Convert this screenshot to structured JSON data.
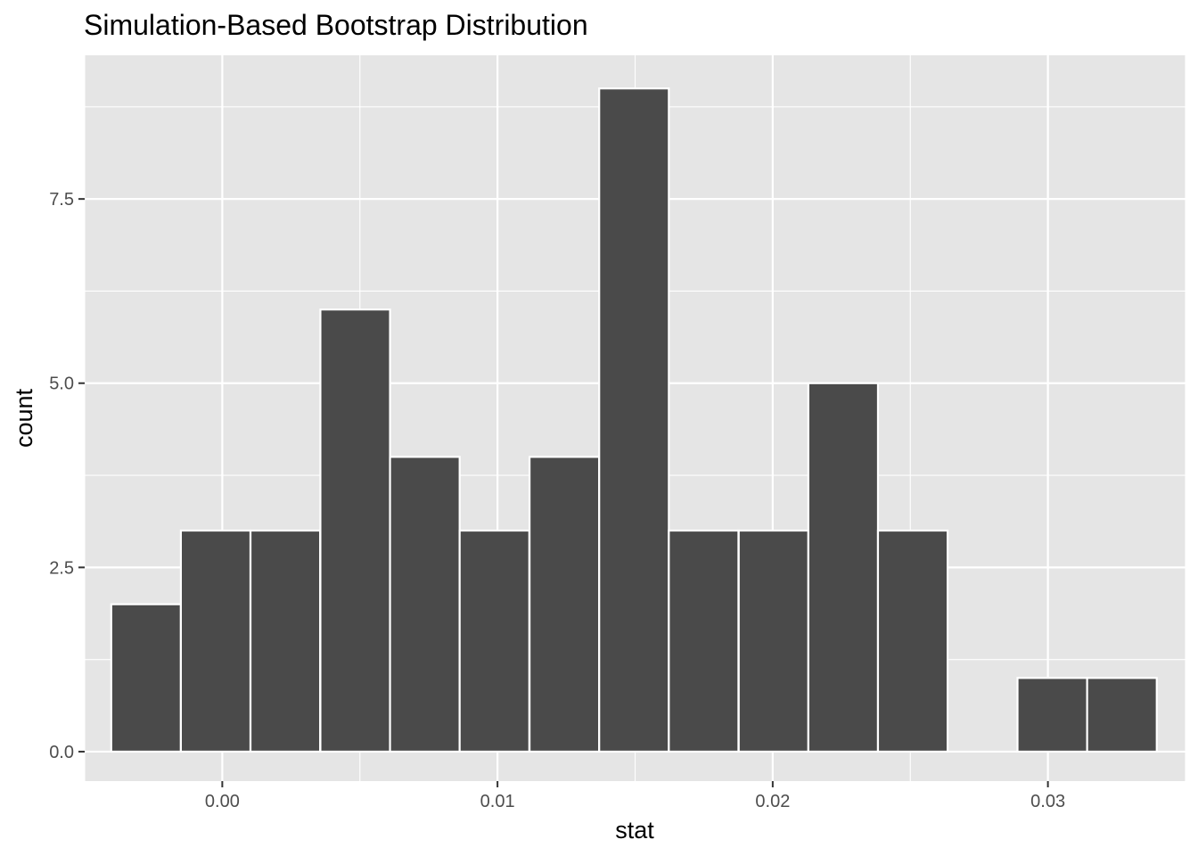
{
  "chart_data": {
    "type": "bar",
    "title": "Simulation-Based Bootstrap Distribution",
    "xlabel": "stat",
    "ylabel": "count",
    "xlim": [
      -0.005,
      0.035
    ],
    "ylim": [
      -0.4,
      9.45
    ],
    "x_ticks": [
      {
        "value": 0.0,
        "label": "0.00"
      },
      {
        "value": 0.01,
        "label": "0.01"
      },
      {
        "value": 0.02,
        "label": "0.02"
      },
      {
        "value": 0.03,
        "label": "0.03"
      }
    ],
    "y_ticks": [
      {
        "value": 0.0,
        "label": "0.0"
      },
      {
        "value": 2.5,
        "label": "2.5"
      },
      {
        "value": 5.0,
        "label": "5.0"
      },
      {
        "value": 7.5,
        "label": "7.5"
      }
    ],
    "bin_width": 0.00253,
    "bins": [
      {
        "x": -0.00277,
        "count": 2
      },
      {
        "x": -0.00024,
        "count": 3
      },
      {
        "x": 0.00229,
        "count": 3
      },
      {
        "x": 0.00483,
        "count": 6
      },
      {
        "x": 0.00736,
        "count": 4
      },
      {
        "x": 0.00989,
        "count": 3
      },
      {
        "x": 0.01243,
        "count": 4
      },
      {
        "x": 0.01496,
        "count": 9
      },
      {
        "x": 0.01749,
        "count": 3
      },
      {
        "x": 0.02003,
        "count": 3
      },
      {
        "x": 0.02256,
        "count": 5
      },
      {
        "x": 0.02509,
        "count": 3
      },
      {
        "x": 0.02763,
        "count": 0
      },
      {
        "x": 0.03016,
        "count": 1
      },
      {
        "x": 0.03269,
        "count": 1
      }
    ],
    "grid": true,
    "colors": {
      "panel": "#e5e5e5",
      "grid": "#ffffff",
      "bar_fill": "#4a4a4a",
      "bar_outline": "#ffffff",
      "tick": "#333333"
    }
  }
}
